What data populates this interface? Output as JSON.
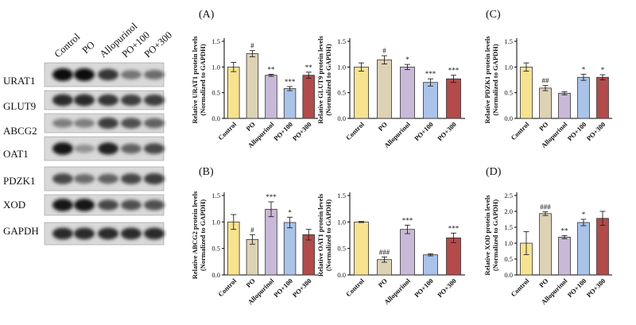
{
  "blot": {
    "lanes": [
      "Control",
      "PO",
      "Allopurinol",
      "PO+100",
      "PO+300"
    ],
    "proteins": [
      "URAT1",
      "GLUT9",
      "ABCG2",
      "OAT1",
      "PDZK1",
      "XOD",
      "GAPDH"
    ]
  },
  "panel_letters": [
    "(A)",
    "(B)",
    "(C)",
    "(D)"
  ],
  "chart_data": [
    {
      "type": "bar",
      "id": "urat1",
      "ylabel": "Relative URAT1 protein levels",
      "ylabel2": "(Normalized to GAPDH)",
      "categories": [
        "Control",
        "PO",
        "Allopurinol",
        "PO+100",
        "PO+300"
      ],
      "values": [
        1.0,
        1.26,
        0.84,
        0.58,
        0.84
      ],
      "errors": [
        0.09,
        0.06,
        0.02,
        0.04,
        0.06
      ],
      "ylim": [
        0,
        1.5
      ],
      "yticks": [
        "0.0",
        "0.5",
        "1.0",
        "1.5"
      ],
      "yticks_v": [
        0,
        0.5,
        1.0,
        1.5
      ],
      "significance": [
        "",
        "#",
        "**",
        "***",
        "**"
      ]
    },
    {
      "type": "bar",
      "id": "glut9",
      "ylabel": "Relative GLUT9 protein levels",
      "ylabel2": "(Normalized to GAPDH)",
      "categories": [
        "Control",
        "PO",
        "Allopurinol",
        "PO+100",
        "PO+300"
      ],
      "values": [
        1.0,
        1.14,
        1.0,
        0.7,
        0.77
      ],
      "errors": [
        0.08,
        0.08,
        0.05,
        0.07,
        0.07
      ],
      "ylim": [
        0,
        1.5
      ],
      "yticks": [
        "0.0",
        "0.5",
        "1.0",
        "1.5"
      ],
      "yticks_v": [
        0,
        0.5,
        1.0,
        1.5
      ],
      "significance": [
        "",
        "#",
        "*",
        "***",
        "***"
      ]
    },
    {
      "type": "bar",
      "id": "pdzk1",
      "ylabel": "Relative PDZK1 protein levels",
      "ylabel2": "(Normalized to GAPDH)",
      "categories": [
        "Control",
        "PO",
        "Allopurinol",
        "PO+100",
        "PO+300"
      ],
      "values": [
        1.0,
        0.59,
        0.49,
        0.8,
        0.8
      ],
      "errors": [
        0.08,
        0.05,
        0.03,
        0.06,
        0.05
      ],
      "ylim": [
        0,
        1.5
      ],
      "yticks": [
        "0.0",
        "0.5",
        "1.0",
        "1.5"
      ],
      "yticks_v": [
        0,
        0.5,
        1.0,
        1.5
      ],
      "significance": [
        "",
        "##",
        "",
        "*",
        "*"
      ]
    },
    {
      "type": "bar",
      "id": "abcg2",
      "ylabel": "Relative ABCG2 protein levels",
      "ylabel2": "(Normalized to GAPDH)",
      "categories": [
        "Control",
        "PO",
        "Allopurinol",
        "PO+100",
        "PO+300"
      ],
      "values": [
        1.0,
        0.67,
        1.24,
        0.99,
        0.76
      ],
      "errors": [
        0.14,
        0.09,
        0.14,
        0.1,
        0.1
      ],
      "ylim": [
        0,
        1.5
      ],
      "yticks": [
        "0.0",
        "0.5",
        "1.0",
        "1.5"
      ],
      "yticks_v": [
        0,
        0.5,
        1.0,
        1.5
      ],
      "significance": [
        "",
        "#",
        "***",
        "*",
        ""
      ]
    },
    {
      "type": "bar",
      "id": "oat1",
      "ylabel": "Relative OAT1 protein levels",
      "ylabel2": "(Normalized to GAPDH)",
      "categories": [
        "Control",
        "PO",
        "Allopurinol",
        "PO+100",
        "PO+300"
      ],
      "values": [
        1.0,
        0.29,
        0.86,
        0.38,
        0.7
      ],
      "errors": [
        0.01,
        0.05,
        0.08,
        0.02,
        0.09
      ],
      "ylim": [
        0,
        1.5
      ],
      "yticks": [
        "0.0",
        "0.5",
        "1.0",
        "1.5"
      ],
      "yticks_v": [
        0,
        0.5,
        1.0,
        1.5
      ],
      "significance": [
        "",
        "###",
        "***",
        "",
        "***"
      ]
    },
    {
      "type": "bar",
      "id": "xod",
      "ylabel": "Relative XOD protein levels",
      "ylabel2": "(Normalized to GAPDH)",
      "categories": [
        "Control",
        "PO",
        "Allopurinol",
        "PO+100",
        "PO+300"
      ],
      "values": [
        1.0,
        1.93,
        1.19,
        1.65,
        1.78
      ],
      "errors": [
        0.36,
        0.06,
        0.05,
        0.1,
        0.22
      ],
      "ylim": [
        0,
        2.5
      ],
      "yticks": [
        "0.0",
        "0.5",
        "1.0",
        "1.5",
        "2.0",
        "2.5"
      ],
      "yticks_v": [
        0,
        0.5,
        1.0,
        1.5,
        2.0,
        2.5
      ],
      "significance": [
        "",
        "###",
        "**",
        "*",
        ""
      ]
    }
  ],
  "colors": [
    "#f7e38e",
    "#ddd2b3",
    "#c9b9d8",
    "#a9c3ea",
    "#b44a4a"
  ]
}
